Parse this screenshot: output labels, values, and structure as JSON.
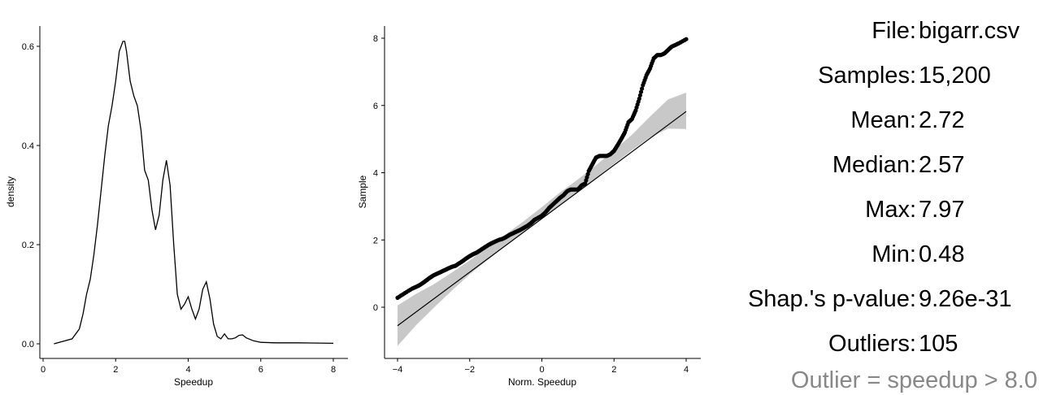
{
  "chart_data": [
    {
      "type": "line",
      "xlabel": "Speedup",
      "ylabel": "density",
      "xlim": [
        0,
        8
      ],
      "ylim": [
        0,
        0.6
      ],
      "x_ticks": [
        "0",
        "2",
        "4",
        "6",
        "8"
      ],
      "y_ticks": [
        "0.0",
        "0.2",
        "0.4",
        "0.6"
      ],
      "series": [
        {
          "x": [
            0.3,
            0.8,
            1.0,
            1.1,
            1.2,
            1.3,
            1.4,
            1.5,
            1.6,
            1.7,
            1.8,
            1.9,
            2.0,
            2.1,
            2.2,
            2.25,
            2.3,
            2.4,
            2.5,
            2.6,
            2.7,
            2.8,
            2.9,
            3.0,
            3.1,
            3.2,
            3.3,
            3.4,
            3.5,
            3.6,
            3.7,
            3.8,
            3.9,
            4.0,
            4.1,
            4.2,
            4.3,
            4.4,
            4.5,
            4.6,
            4.7,
            4.8,
            4.9,
            5.0,
            5.1,
            5.2,
            5.3,
            5.4,
            5.5,
            5.6,
            5.8,
            6.0,
            6.4,
            7.0,
            8.0
          ],
          "y": [
            0.0,
            0.01,
            0.03,
            0.06,
            0.1,
            0.13,
            0.18,
            0.24,
            0.31,
            0.38,
            0.44,
            0.48,
            0.53,
            0.59,
            0.61,
            0.61,
            0.59,
            0.53,
            0.5,
            0.48,
            0.43,
            0.35,
            0.33,
            0.27,
            0.23,
            0.26,
            0.33,
            0.37,
            0.32,
            0.2,
            0.1,
            0.07,
            0.08,
            0.095,
            0.07,
            0.05,
            0.07,
            0.11,
            0.125,
            0.09,
            0.04,
            0.015,
            0.01,
            0.02,
            0.01,
            0.01,
            0.012,
            0.017,
            0.018,
            0.012,
            0.006,
            0.003,
            0.002,
            0.002,
            0.001
          ]
        }
      ]
    },
    {
      "type": "scatter",
      "xlabel": "Norm. Speedup",
      "ylabel": "Sample",
      "xlim": [
        -4,
        4
      ],
      "ylim": [
        0,
        8
      ],
      "x_ticks": [
        "−4",
        "−2",
        "0",
        "2",
        "4"
      ],
      "y_ticks": [
        "0",
        "2",
        "4",
        "6",
        "8"
      ],
      "reference_line": {
        "x": [
          -4,
          4
        ],
        "y": [
          -0.55,
          5.82
        ]
      },
      "confidence_band": {
        "x": [
          -4,
          -3.5,
          -3.0,
          -2.5,
          -2.0,
          -1.5,
          -1.0,
          -0.5,
          0.0,
          0.5,
          1.0,
          1.5,
          2.0,
          2.5,
          3.0,
          3.5,
          4.0
        ],
        "lower": [
          -1.15,
          -0.55,
          -0.02,
          0.49,
          0.98,
          1.41,
          1.83,
          2.23,
          2.63,
          3.04,
          3.44,
          3.85,
          4.26,
          4.67,
          5.05,
          5.31,
          5.3
        ],
        "upper": [
          0.05,
          0.39,
          0.68,
          1.03,
          1.39,
          1.8,
          2.17,
          2.56,
          2.98,
          3.41,
          3.8,
          4.22,
          4.67,
          5.13,
          5.67,
          6.18,
          6.38
        ]
      },
      "series": [
        {
          "x": [
            -4.0,
            -3.8,
            -3.6,
            -3.5,
            -3.4,
            -3.3,
            -3.2,
            -3.1,
            -3.0,
            -2.9,
            -2.8,
            -2.7,
            -2.6,
            -2.5,
            -2.4,
            -2.3,
            -2.2,
            -2.1,
            -2.0,
            -1.9,
            -1.8,
            -1.7,
            -1.6,
            -1.5,
            -1.4,
            -1.3,
            -1.2,
            -1.1,
            -1.0,
            -0.9,
            -0.8,
            -0.7,
            -0.6,
            -0.5,
            -0.4,
            -0.3,
            -0.2,
            -0.1,
            0.0,
            0.1,
            0.2,
            0.3,
            0.4,
            0.5,
            0.6,
            0.7,
            0.8,
            0.9,
            1.0,
            1.1,
            1.2,
            1.3,
            1.4,
            1.5,
            1.6,
            1.7,
            1.8,
            1.9,
            2.0,
            2.1,
            2.2,
            2.3,
            2.4,
            2.5,
            2.6,
            2.7,
            2.8,
            2.9,
            3.0,
            3.1,
            3.2,
            3.3,
            3.4,
            3.5,
            3.6,
            3.7,
            3.8,
            4.0
          ],
          "y": [
            0.28,
            0.42,
            0.55,
            0.6,
            0.65,
            0.72,
            0.8,
            0.88,
            0.95,
            1.0,
            1.05,
            1.1,
            1.15,
            1.2,
            1.23,
            1.3,
            1.37,
            1.45,
            1.52,
            1.58,
            1.63,
            1.7,
            1.77,
            1.84,
            1.9,
            1.95,
            2.0,
            2.03,
            2.08,
            2.15,
            2.2,
            2.25,
            2.3,
            2.36,
            2.42,
            2.5,
            2.6,
            2.66,
            2.72,
            2.82,
            2.95,
            3.05,
            3.15,
            3.25,
            3.33,
            3.45,
            3.5,
            3.5,
            3.5,
            3.62,
            3.68,
            4.05,
            4.25,
            4.45,
            4.5,
            4.5,
            4.5,
            4.55,
            4.65,
            4.82,
            5.0,
            5.2,
            5.5,
            5.6,
            5.85,
            6.2,
            6.6,
            6.9,
            7.1,
            7.4,
            7.5,
            7.5,
            7.55,
            7.65,
            7.75,
            7.8,
            7.85,
            7.97
          ]
        }
      ]
    }
  ],
  "stats": {
    "rows": [
      {
        "key": "File:",
        "value": "bigarr.csv"
      },
      {
        "key": "Samples:",
        "value": "15,200"
      },
      {
        "key": "Mean:",
        "value": "2.72"
      },
      {
        "key": "Median:",
        "value": "2.57"
      },
      {
        "key": "Max:",
        "value": "7.97"
      },
      {
        "key": "Min:",
        "value": "0.48"
      },
      {
        "key": "Shap.'s p-value:",
        "value": "9.26e-31"
      },
      {
        "key": "Outliers:",
        "value": "105"
      }
    ],
    "note": "Outlier = speedup > 8.0",
    "note_color": "#888888"
  },
  "colors": {
    "line": "#000000",
    "points": "#000000",
    "band": "#c8c8c8",
    "axis": "#000000"
  }
}
